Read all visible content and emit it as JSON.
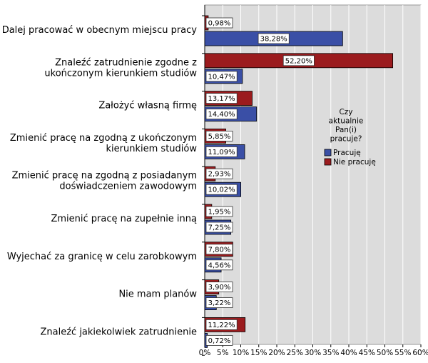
{
  "chart_data": {
    "type": "bar",
    "orientation": "horizontal",
    "categories": [
      [
        "Dalej pracować w obecnym miejscu pracy"
      ],
      [
        "Znaleźć zatrudnienie zgodne z",
        "ukończonym kierunkiem studiów"
      ],
      [
        "Założyć własną firmę"
      ],
      [
        "Zmienić pracę na zgodną z ukończonym",
        "kierunkiem studiów"
      ],
      [
        "Zmienić pracę na zgodną z posiadanym",
        "doświadczeniem zawodowym"
      ],
      [
        "Zmienić pracę na zupełnie inną"
      ],
      [
        "Wyjechać za granicę w celu zarobkowym"
      ],
      [
        "Nie mam planów"
      ],
      [
        "Znaleźć jakiekolwiek zatrudnienie"
      ]
    ],
    "series": [
      {
        "name": "Nie pracuję",
        "color": "#9b1b1e",
        "values": [
          0.98,
          52.2,
          13.17,
          5.85,
          2.93,
          1.95,
          7.8,
          3.9,
          11.22
        ],
        "labels": [
          "0,98%",
          "52,20%",
          "13,17%",
          "5,85%",
          "2,93%",
          "1,95%",
          "7,80%",
          "3,90%",
          "11,22%"
        ]
      },
      {
        "name": "Pracuję",
        "color": "#3a4fa6",
        "values": [
          38.28,
          10.47,
          14.4,
          11.09,
          10.02,
          7.25,
          4.56,
          3.22,
          0.72
        ],
        "labels": [
          "38,28%",
          "10,47%",
          "14,40%",
          "11,09%",
          "10,02%",
          "7,25%",
          "4,56%",
          "3,22%",
          "0,72%"
        ]
      }
    ],
    "xlim": [
      0,
      60
    ],
    "xticks": [
      0,
      5,
      10,
      15,
      20,
      25,
      30,
      35,
      40,
      45,
      50,
      55,
      60
    ],
    "xtick_labels": [
      "0%",
      "5%",
      "10%",
      "15%",
      "20%",
      "25%",
      "30%",
      "35%",
      "40%",
      "45%",
      "50%",
      "55%",
      "60%"
    ],
    "grid": "vertical",
    "legend": {
      "title_lines": [
        "Czy",
        "aktualnie",
        "Pan(i)",
        "pracuje?"
      ],
      "items": [
        {
          "label": "Pracuję",
          "color": "#3a4fa6"
        },
        {
          "label": "Nie pracuję",
          "color": "#9b1b1e"
        }
      ],
      "placement": "right"
    },
    "plot_background": "#dcdcdc"
  }
}
